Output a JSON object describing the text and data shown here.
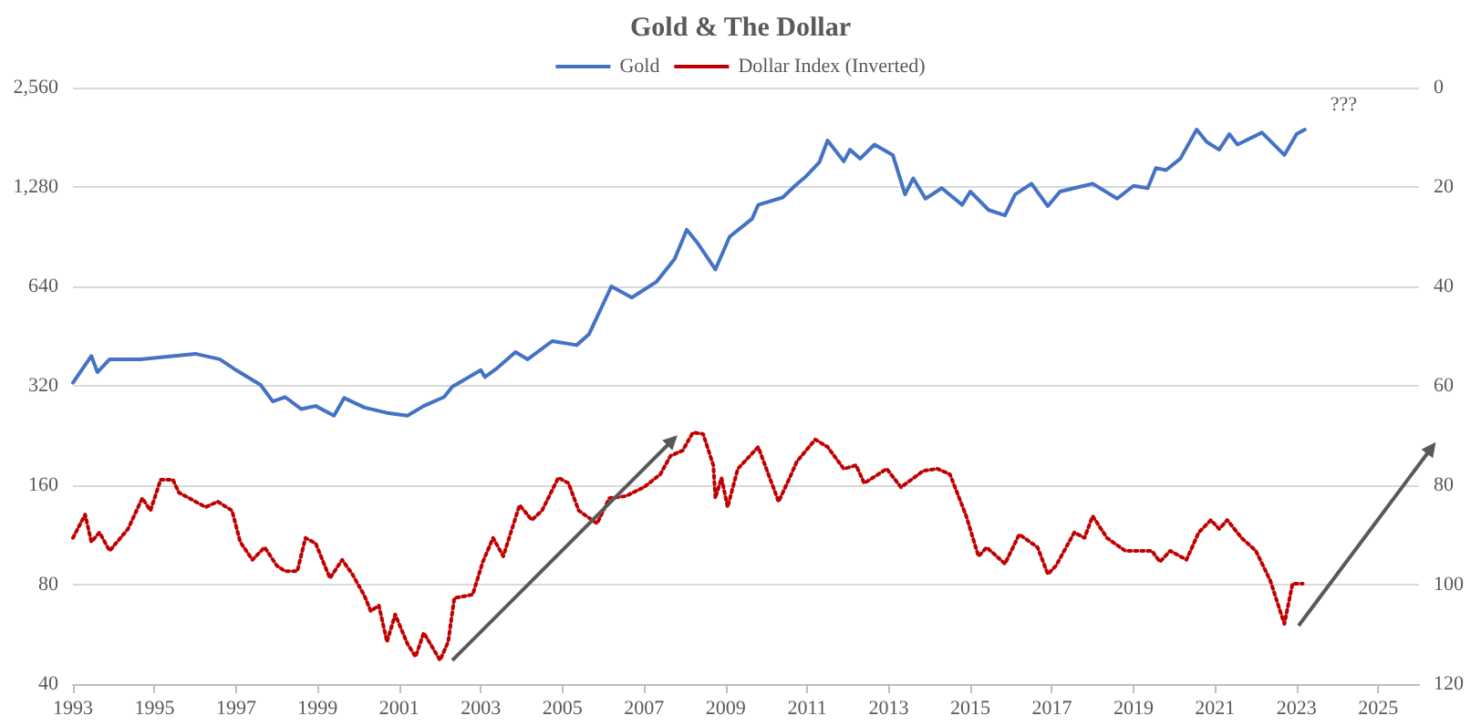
{
  "chart_data": {
    "type": "line",
    "title": "Gold & The Dollar",
    "legend": "top",
    "grid": "y",
    "marker": "none",
    "xlim": [
      1993,
      2026
    ],
    "xticks": [
      1993,
      1995,
      1997,
      1999,
      2001,
      2003,
      2005,
      2007,
      2009,
      2011,
      2013,
      2015,
      2017,
      2019,
      2021,
      2023,
      2025
    ],
    "ylim": [
      40,
      2560
    ],
    "yticks": [
      40,
      80,
      160,
      320,
      640,
      {
        "value": 1280,
        "label": "1,280"
      },
      {
        "value": 2560,
        "label": "2,560"
      }
    ],
    "log": "y",
    "y2lim": [
      120,
      0
    ],
    "y2ticks": [
      0,
      20,
      40,
      60,
      80,
      100,
      120
    ],
    "annotations": [
      "???"
    ],
    "series": [
      {
        "name": "Gold",
        "color": "#4472c4",
        "line_style": "solid",
        "x": [
          1993.0,
          1993.45,
          1993.6,
          1993.9,
          1994.65,
          1996.0,
          1996.6,
          1997.0,
          1997.6,
          1997.9,
          1998.2,
          1998.6,
          1998.95,
          1999.4,
          1999.65,
          2000.15,
          2000.7,
          2001.2,
          2001.6,
          2002.1,
          2002.3,
          2003.0,
          2003.1,
          2003.4,
          2003.85,
          2004.15,
          2004.75,
          2005.35,
          2005.65,
          2006.2,
          2006.7,
          2007.3,
          2007.75,
          2008.05,
          2008.3,
          2008.75,
          2009.1,
          2009.65,
          2009.8,
          2010.4,
          2010.7,
          2010.95,
          2011.3,
          2011.5,
          2011.9,
          2012.05,
          2012.3,
          2012.65,
          2013.1,
          2013.4,
          2013.6,
          2013.9,
          2014.3,
          2014.8,
          2015.0,
          2015.45,
          2015.85,
          2016.1,
          2016.5,
          2016.9,
          2017.2,
          2017.55,
          2018.0,
          2018.6,
          2019.0,
          2019.35,
          2019.55,
          2019.8,
          2020.15,
          2020.55,
          2020.8,
          2021.1,
          2021.35,
          2021.55,
          2022.15,
          2022.7,
          2023.0,
          2023.2
        ],
        "values": [
          327,
          394,
          352,
          385,
          385,
          400,
          385,
          357,
          322,
          287,
          296,
          272,
          278,
          260,
          294,
          275,
          265,
          260,
          278,
          296,
          318,
          357,
          340,
          362,
          405,
          385,
          437,
          425,
          458,
          640,
          592,
          660,
          775,
          950,
          870,
          720,
          905,
          1025,
          1130,
          1190,
          1290,
          1370,
          1520,
          1770,
          1530,
          1660,
          1560,
          1720,
          1600,
          1215,
          1360,
          1180,
          1270,
          1130,
          1240,
          1090,
          1050,
          1215,
          1310,
          1120,
          1240,
          1270,
          1310,
          1180,
          1290,
          1270,
          1460,
          1440,
          1560,
          1910,
          1750,
          1660,
          1850,
          1720,
          1870,
          1600,
          1850,
          1910
        ]
      },
      {
        "name": "Dollar Index (Inverted)",
        "color": "#c00000",
        "line_style": "dotted",
        "axis": "y2",
        "x": [
          1993.0,
          1993.3,
          1993.45,
          1993.65,
          1993.9,
          1994.35,
          1994.7,
          1994.9,
          1995.15,
          1995.45,
          1995.6,
          1996.25,
          1996.55,
          1996.9,
          1997.1,
          1997.4,
          1997.7,
          1998.0,
          1998.2,
          1998.5,
          1998.7,
          1998.95,
          1999.3,
          1999.6,
          1999.85,
          2000.15,
          2000.3,
          2000.5,
          2000.7,
          2000.9,
          2001.2,
          2001.4,
          2001.6,
          2002.0,
          2002.2,
          2002.35,
          2002.8,
          2003.05,
          2003.3,
          2003.55,
          2003.95,
          2004.25,
          2004.5,
          2004.9,
          2005.15,
          2005.4,
          2005.85,
          2006.15,
          2006.55,
          2007.0,
          2007.4,
          2007.65,
          2007.95,
          2008.2,
          2008.45,
          2008.7,
          2008.75,
          2008.9,
          2009.05,
          2009.3,
          2009.8,
          2010.3,
          2010.55,
          2010.75,
          2011.2,
          2011.5,
          2011.9,
          2012.2,
          2012.4,
          2012.95,
          2013.3,
          2013.85,
          2014.2,
          2014.5,
          2014.9,
          2015.2,
          2015.4,
          2015.85,
          2016.2,
          2016.65,
          2016.9,
          2017.1,
          2017.55,
          2017.8,
          2018.0,
          2018.35,
          2018.8,
          2019.45,
          2019.65,
          2019.9,
          2020.3,
          2020.6,
          2020.9,
          2021.1,
          2021.3,
          2021.65,
          2022.0,
          2022.35,
          2022.7,
          2022.9,
          2023.15
        ],
        "values": [
          90.6,
          85.9,
          91.4,
          89.5,
          93.2,
          88.8,
          82.6,
          85.1,
          78.9,
          78.9,
          81.5,
          84.4,
          83.3,
          85.1,
          91.4,
          95.0,
          92.5,
          96.2,
          97.3,
          97.3,
          90.6,
          91.7,
          98.7,
          95.0,
          97.9,
          102.3,
          105.3,
          104.2,
          111.5,
          106.0,
          111.9,
          114.5,
          109.7,
          115.2,
          111.5,
          102.7,
          102.0,
          95.4,
          90.6,
          94.3,
          84.0,
          87.0,
          85.1,
          78.5,
          79.6,
          85.1,
          87.7,
          82.6,
          82.2,
          80.4,
          77.8,
          74.1,
          73.0,
          69.4,
          69.7,
          76.0,
          82.6,
          78.5,
          84.4,
          76.7,
          72.3,
          83.3,
          78.9,
          75.2,
          70.8,
          72.3,
          76.7,
          76.0,
          79.6,
          76.7,
          80.4,
          77.1,
          76.7,
          77.8,
          86.2,
          94.3,
          92.5,
          95.8,
          89.9,
          92.5,
          97.9,
          96.2,
          89.5,
          90.6,
          86.2,
          90.6,
          93.2,
          93.2,
          95.4,
          93.2,
          95.0,
          89.5,
          87.0,
          88.8,
          87.0,
          90.6,
          93.2,
          99.1,
          107.9,
          99.8,
          99.8
        ]
      }
    ]
  }
}
